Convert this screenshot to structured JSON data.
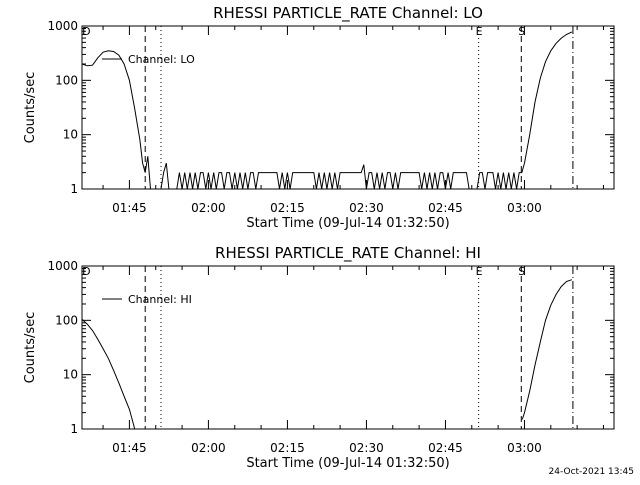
{
  "footer": {
    "timestamp": "24-Oct-2021 13:45"
  },
  "chart_data": [
    {
      "type": "line",
      "title": "RHESSI PARTICLE_RATE Channel: LO",
      "xlabel": "Start Time (09-Jul-14 01:32:50)",
      "ylabel": "Counts/sec",
      "y_scale": "log",
      "ylim": [
        1,
        1000
      ],
      "xlim_minutes": [
        96,
        197
      ],
      "x_ticks": [
        {
          "value": 105,
          "label": "01:45"
        },
        {
          "value": 120,
          "label": "02:00"
        },
        {
          "value": 135,
          "label": "02:15"
        },
        {
          "value": 150,
          "label": "02:30"
        },
        {
          "value": 165,
          "label": "02:45"
        },
        {
          "value": 180,
          "label": "03:00"
        }
      ],
      "y_ticks": [
        {
          "value": 1,
          "label": "1"
        },
        {
          "value": 10,
          "label": "10"
        },
        {
          "value": 100,
          "label": "100"
        },
        {
          "value": 1000,
          "label": "1000"
        }
      ],
      "markers": [
        {
          "x": 96.6,
          "style": "none",
          "label": "D"
        },
        {
          "x": 108,
          "style": "dashed",
          "label": ""
        },
        {
          "x": 111,
          "style": "dotted",
          "label": ""
        },
        {
          "x": 171.3,
          "style": "dotted",
          "label": "E"
        },
        {
          "x": 179.4,
          "style": "dashed",
          "label": "S"
        },
        {
          "x": 189.2,
          "style": "dashdot",
          "label": ""
        }
      ],
      "legend": {
        "placement": "top-left",
        "entries": [
          "Channel: LO"
        ]
      },
      "series": [
        {
          "name": "Channel: LO",
          "points": [
            [
              96,
              200
            ],
            [
              97,
              185
            ],
            [
              98,
              190
            ],
            [
              99,
              260
            ],
            [
              100,
              330
            ],
            [
              101,
              350
            ],
            [
              102,
              340
            ],
            [
              103,
              290
            ],
            [
              104,
              200
            ],
            [
              105,
              100
            ],
            [
              106,
              30
            ],
            [
              107,
              8
            ],
            [
              107.5,
              3
            ],
            [
              108,
              2
            ],
            [
              108.5,
              4
            ],
            [
              109,
              1
            ],
            [
              110.5,
              1
            ],
            [
              111,
              1
            ],
            [
              111.5,
              2
            ],
            [
              112,
              3
            ],
            [
              112.5,
              1
            ],
            [
              113.5,
              1
            ],
            [
              114,
              1
            ],
            [
              114.5,
              2
            ],
            [
              115,
              1
            ],
            [
              115.5,
              2
            ],
            [
              116,
              1
            ],
            [
              116.5,
              2
            ],
            [
              117,
              1
            ],
            [
              117.5,
              2
            ],
            [
              118,
              1
            ],
            [
              118.5,
              2
            ],
            [
              119,
              2
            ],
            [
              119.5,
              1
            ],
            [
              120,
              2
            ],
            [
              120.5,
              1
            ],
            [
              121,
              2
            ],
            [
              121.5,
              1
            ],
            [
              122,
              2
            ],
            [
              122.5,
              2
            ],
            [
              123,
              1
            ],
            [
              123.5,
              2
            ],
            [
              124,
              2
            ],
            [
              124.5,
              1
            ],
            [
              125,
              2
            ],
            [
              125.5,
              1
            ],
            [
              126,
              2
            ],
            [
              126.5,
              1
            ],
            [
              127,
              2
            ],
            [
              127.5,
              1
            ],
            [
              128,
              2
            ],
            [
              128.5,
              2
            ],
            [
              129,
              1
            ],
            [
              129.5,
              2
            ],
            [
              130,
              2
            ],
            [
              131,
              2
            ],
            [
              132,
              2
            ],
            [
              133,
              2
            ],
            [
              133.5,
              1
            ],
            [
              134,
              2
            ],
            [
              134.5,
              1
            ],
            [
              135,
              2
            ],
            [
              135.5,
              1
            ],
            [
              136,
              2
            ],
            [
              137,
              2
            ],
            [
              138,
              2
            ],
            [
              139,
              2
            ],
            [
              140,
              2
            ],
            [
              140.5,
              1
            ],
            [
              141,
              2
            ],
            [
              141.5,
              1
            ],
            [
              142,
              2
            ],
            [
              142.5,
              1
            ],
            [
              143,
              2
            ],
            [
              143.5,
              1
            ],
            [
              144,
              2
            ],
            [
              144.5,
              1
            ],
            [
              145,
              2
            ],
            [
              146,
              2
            ],
            [
              147,
              2
            ],
            [
              148,
              2
            ],
            [
              149,
              2
            ],
            [
              149.5,
              2.8
            ],
            [
              150,
              1
            ],
            [
              150.5,
              2
            ],
            [
              151,
              2
            ],
            [
              151.5,
              1
            ],
            [
              152,
              2
            ],
            [
              152.5,
              1
            ],
            [
              153,
              2
            ],
            [
              153.5,
              1
            ],
            [
              154,
              2
            ],
            [
              154.5,
              2
            ],
            [
              155,
              1
            ],
            [
              155.5,
              2
            ],
            [
              156,
              1
            ],
            [
              156.5,
              2
            ],
            [
              157,
              2
            ],
            [
              158,
              2
            ],
            [
              159,
              2
            ],
            [
              160,
              2
            ],
            [
              160.5,
              1
            ],
            [
              161,
              2
            ],
            [
              161.5,
              1
            ],
            [
              162,
              2
            ],
            [
              162.5,
              1
            ],
            [
              163,
              2
            ],
            [
              163.5,
              1
            ],
            [
              164,
              2
            ],
            [
              164.5,
              2
            ],
            [
              165,
              1
            ],
            [
              165.5,
              2
            ],
            [
              166,
              1
            ],
            [
              166.5,
              2
            ],
            [
              167,
              2
            ],
            [
              168,
              2
            ],
            [
              169,
              2
            ],
            [
              169.5,
              1
            ],
            [
              171,
              1
            ],
            [
              171.5,
              2
            ],
            [
              172,
              2
            ],
            [
              172.5,
              1
            ],
            [
              173,
              2
            ],
            [
              173.5,
              2
            ],
            [
              174,
              2
            ],
            [
              174.5,
              1
            ],
            [
              175,
              2
            ],
            [
              175.5,
              1
            ],
            [
              176,
              2
            ],
            [
              176.5,
              1
            ],
            [
              177,
              2
            ],
            [
              177.5,
              1
            ],
            [
              178,
              2
            ],
            [
              178.5,
              1
            ],
            [
              179,
              2
            ],
            [
              179.5,
              2
            ],
            [
              180,
              3
            ],
            [
              181,
              10
            ],
            [
              182,
              40
            ],
            [
              183,
              110
            ],
            [
              184,
              220
            ],
            [
              185,
              350
            ],
            [
              186,
              480
            ],
            [
              187,
              600
            ],
            [
              188,
              700
            ],
            [
              189,
              780
            ]
          ]
        }
      ]
    },
    {
      "type": "line",
      "title": "RHESSI PARTICLE_RATE Channel: HI",
      "xlabel": "Start Time (09-Jul-14 01:32:50)",
      "ylabel": "Counts/sec",
      "y_scale": "log",
      "ylim": [
        1,
        1000
      ],
      "xlim_minutes": [
        96,
        197
      ],
      "x_ticks": [
        {
          "value": 105,
          "label": "01:45"
        },
        {
          "value": 120,
          "label": "02:00"
        },
        {
          "value": 135,
          "label": "02:15"
        },
        {
          "value": 150,
          "label": "02:30"
        },
        {
          "value": 165,
          "label": "02:45"
        },
        {
          "value": 180,
          "label": "03:00"
        }
      ],
      "y_ticks": [
        {
          "value": 1,
          "label": "1"
        },
        {
          "value": 10,
          "label": "10"
        },
        {
          "value": 100,
          "label": "100"
        },
        {
          "value": 1000,
          "label": "1000"
        }
      ],
      "markers": [
        {
          "x": 96.6,
          "style": "none",
          "label": "D"
        },
        {
          "x": 108,
          "style": "dashed",
          "label": ""
        },
        {
          "x": 111,
          "style": "dotted",
          "label": ""
        },
        {
          "x": 171.3,
          "style": "dotted",
          "label": "E"
        },
        {
          "x": 179.4,
          "style": "dashed",
          "label": "S"
        },
        {
          "x": 189.2,
          "style": "dashdot",
          "label": ""
        }
      ],
      "legend": {
        "placement": "top-left",
        "entries": [
          "Channel: HI"
        ]
      },
      "series": [
        {
          "name": "Channel: HI",
          "points": [
            [
              96,
              105
            ],
            [
              97,
              85
            ],
            [
              98,
              65
            ],
            [
              99,
              45
            ],
            [
              100,
              30
            ],
            [
              101,
              20
            ],
            [
              102,
              12
            ],
            [
              103,
              7
            ],
            [
              104,
              4
            ],
            [
              105,
              2.3
            ],
            [
              105.8,
              1.2
            ],
            [
              106,
              1
            ]
          ]
        },
        {
          "name": "",
          "points": [
            [
              179.6,
              1.5
            ],
            [
              180,
              2
            ],
            [
              181,
              5
            ],
            [
              182,
              15
            ],
            [
              183,
              40
            ],
            [
              184,
              100
            ],
            [
              185,
              190
            ],
            [
              186,
              300
            ],
            [
              187,
              420
            ],
            [
              188,
              520
            ],
            [
              189,
              560
            ]
          ]
        }
      ]
    }
  ]
}
